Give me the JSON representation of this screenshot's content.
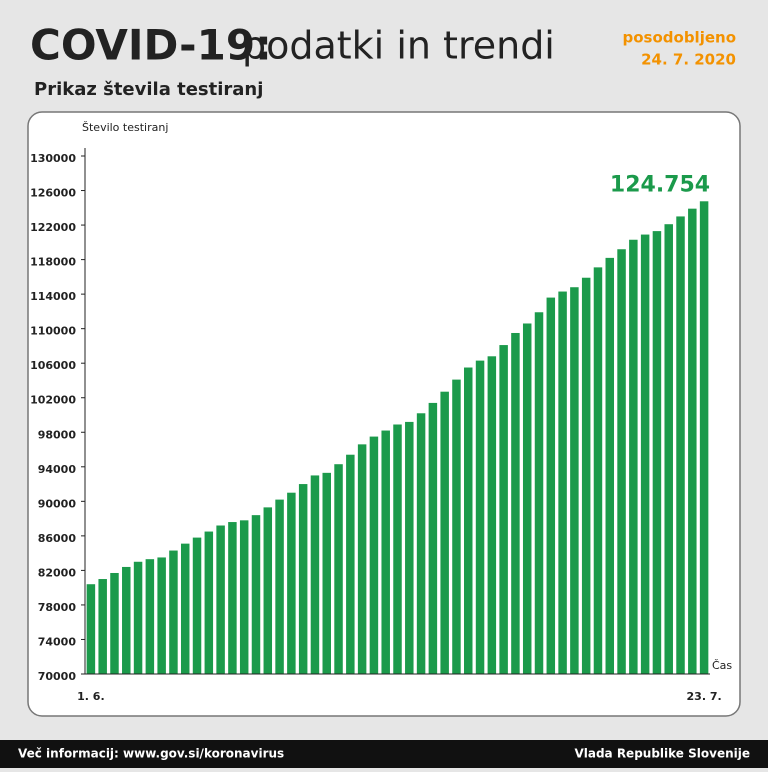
{
  "header": {
    "title_bold": "COVID-19:",
    "title_light": "podatki in trendi",
    "updated_label": "posodobljeno",
    "updated_date": "24. 7. 2020"
  },
  "chart_data": {
    "type": "bar",
    "title": "Prikaz števila testiranj",
    "y_label": "Število testiranj",
    "x_label": "Čas",
    "categories": [
      "1. 6.",
      null,
      null,
      null,
      null,
      null,
      null,
      null,
      null,
      null,
      null,
      null,
      null,
      null,
      null,
      null,
      null,
      null,
      null,
      null,
      null,
      null,
      null,
      null,
      null,
      null,
      null,
      null,
      null,
      null,
      null,
      null,
      null,
      null,
      null,
      null,
      null,
      null,
      null,
      null,
      null,
      null,
      null,
      null,
      null,
      null,
      null,
      null,
      null,
      null,
      null,
      null,
      "23. 7."
    ],
    "values": [
      80400,
      81000,
      81700,
      82400,
      83000,
      83300,
      83500,
      84300,
      85100,
      85800,
      86500,
      87200,
      87600,
      87800,
      88400,
      89300,
      90200,
      91000,
      92000,
      93000,
      93300,
      94300,
      95400,
      96600,
      97500,
      98200,
      98900,
      99200,
      100200,
      101400,
      102700,
      104100,
      105500,
      106300,
      106800,
      108100,
      109500,
      110600,
      111900,
      113600,
      114300,
      114800,
      115900,
      117100,
      118200,
      119200,
      120300,
      120900,
      121300,
      122100,
      123000,
      123900,
      124754
    ],
    "value_labels": [
      null,
      null,
      null,
      null,
      null,
      null,
      null,
      null,
      null,
      null,
      null,
      null,
      null,
      null,
      null,
      null,
      null,
      null,
      null,
      null,
      null,
      null,
      null,
      null,
      null,
      null,
      null,
      null,
      null,
      null,
      null,
      null,
      null,
      null,
      null,
      null,
      null,
      null,
      null,
      null,
      null,
      null,
      null,
      null,
      null,
      null,
      null,
      null,
      null,
      null,
      null,
      null,
      "124.754"
    ],
    "color": "#1b9a4b",
    "ylim": [
      70000,
      130000
    ],
    "yticks": [
      70000,
      74000,
      78000,
      82000,
      86000,
      90000,
      94000,
      98000,
      102000,
      106000,
      110000,
      114000,
      118000,
      122000,
      126000,
      130000
    ]
  },
  "footer": {
    "left": "Več informacij: www.gov.si/koronavirus",
    "right": "Vlada Republike Slovenije"
  }
}
